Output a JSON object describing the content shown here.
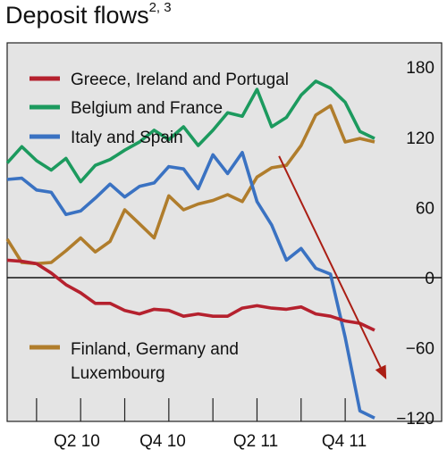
{
  "title": {
    "text": "Deposit flows",
    "superscript": "2, 3"
  },
  "chart_data": {
    "type": "line",
    "title": "Deposit flows",
    "xlabel": "",
    "ylabel": "",
    "x_tick_labels": [
      "Q2 10",
      "Q4 10",
      "Q2 11",
      "Q4 11"
    ],
    "x_tick_quarters": [
      "Q1 10",
      "Q2 10",
      "Q3 10",
      "Q4 10",
      "Q1 11",
      "Q2 11",
      "Q3 11",
      "Q4 11"
    ],
    "y_tick_labels": [
      "180",
      "120",
      "60",
      "0",
      "−60",
      "−120"
    ],
    "y_ticks": [
      180,
      120,
      60,
      0,
      -60,
      -120
    ],
    "ylim": [
      -148,
      198
    ],
    "x_range": [
      0,
      26
    ],
    "zero_line": true,
    "grid": false,
    "legend_placement": "top-left and bottom-left",
    "series": [
      {
        "name": "Greece, Ireland and Portugal",
        "color": "#b5212e",
        "x": [
          0,
          1,
          2,
          3,
          4,
          5,
          6,
          7,
          8,
          9,
          10,
          11,
          12,
          13,
          14,
          15,
          16,
          17,
          18,
          19,
          20,
          21,
          22,
          23,
          24,
          25
        ],
        "values": [
          15,
          14,
          12,
          4,
          -6,
          -13,
          -22,
          -22,
          -28,
          -31,
          -27,
          -28,
          -33,
          -31,
          -33,
          -33,
          -26,
          -24,
          -26,
          -27,
          -25,
          -31,
          -33,
          -37,
          -39,
          -45
        ]
      },
      {
        "name": "Belgium and France",
        "color": "#1c9a5e",
        "x": [
          0,
          1,
          2,
          3,
          4,
          5,
          6,
          7,
          8,
          9,
          10,
          11,
          12,
          13,
          14,
          15,
          16,
          17,
          18,
          19,
          20,
          21,
          22,
          23,
          24,
          25
        ],
        "values": [
          98,
          112,
          100,
          92,
          102,
          82,
          96,
          101,
          109,
          116,
          126,
          118,
          129,
          113,
          126,
          141,
          138,
          161,
          129,
          137,
          156,
          168,
          162,
          150,
          125,
          119
        ]
      },
      {
        "name": "Italy and Spain",
        "color": "#3a72c2",
        "x": [
          0,
          1,
          2,
          3,
          4,
          5,
          6,
          7,
          8,
          9,
          10,
          11,
          12,
          13,
          14,
          15,
          16,
          17,
          18,
          19,
          20,
          21,
          22,
          23,
          24,
          25
        ],
        "values": [
          84,
          85,
          75,
          73,
          54,
          57,
          68,
          80,
          69,
          78,
          81,
          95,
          93,
          76,
          105,
          89,
          107,
          65,
          45,
          15,
          25,
          8,
          3,
          -51,
          -114,
          -120
        ]
      },
      {
        "name": "Finland, Germany and Luxembourg",
        "color": "#b07d2c",
        "x": [
          0,
          1,
          2,
          3,
          4,
          5,
          6,
          7,
          8,
          9,
          10,
          11,
          12,
          13,
          14,
          15,
          16,
          17,
          18,
          19,
          20,
          21,
          22,
          23,
          24,
          25
        ],
        "values": [
          33,
          13,
          12,
          13,
          23,
          34,
          22,
          31,
          58,
          46,
          34,
          70,
          58,
          63,
          66,
          71,
          65,
          86,
          94,
          96,
          113,
          139,
          147,
          116,
          119,
          116
        ]
      }
    ],
    "annotations": [
      {
        "type": "trend-arrow",
        "color": "#aa1e14",
        "from": [
          18.5,
          104
        ],
        "to": [
          25.8,
          -87
        ]
      }
    ]
  }
}
